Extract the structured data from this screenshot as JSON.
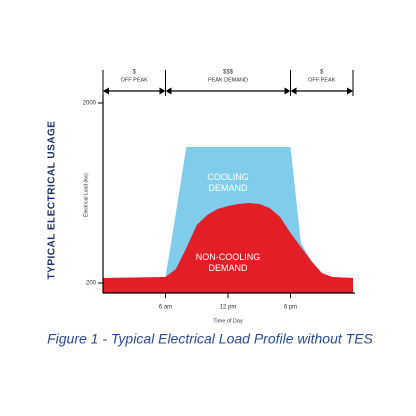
{
  "chart_data": {
    "type": "area",
    "title": "Figure 1 - Typical Electrical Load Profile without TES",
    "side_label": "TYPICAL ELECTRICAL USAGE",
    "ylabel": "Electrical Load (kw)",
    "xlabel": "Time of Day",
    "x": [
      0,
      6,
      7,
      8,
      9,
      10,
      11,
      12,
      13,
      14,
      15,
      16,
      17,
      18,
      19,
      20,
      21,
      22,
      24
    ],
    "xlim": [
      0,
      24
    ],
    "xticks": [
      {
        "value": 6,
        "label": "6 am"
      },
      {
        "value": 12,
        "label": "12 pm"
      },
      {
        "value": 18,
        "label": "6 pm"
      }
    ],
    "ylim": [
      200,
      2000
    ],
    "yticks": [
      200,
      2000
    ],
    "series": [
      {
        "name": "COOLING DEMAND",
        "color": "#7fcdea",
        "values": [
          250,
          260,
          900,
          1560,
          1560,
          1560,
          1560,
          1560,
          1560,
          1560,
          1560,
          1560,
          1560,
          1560,
          600,
          420,
          300,
          260,
          250
        ]
      },
      {
        "name": "NON-COOLING DEMAND",
        "color": "#e41e26",
        "values": [
          250,
          260,
          340,
          550,
          780,
          880,
          940,
          970,
          990,
          1000,
          990,
          950,
          860,
          700,
          560,
          420,
          300,
          260,
          250
        ]
      }
    ],
    "periods": [
      {
        "price": "$",
        "label": "OFF PEAK",
        "range": [
          0,
          6
        ]
      },
      {
        "price": "$$$",
        "label": "PEAK DEMAND",
        "range": [
          6,
          18
        ]
      },
      {
        "price": "$",
        "label": "OFF PEAK",
        "range": [
          18,
          24
        ]
      }
    ]
  }
}
